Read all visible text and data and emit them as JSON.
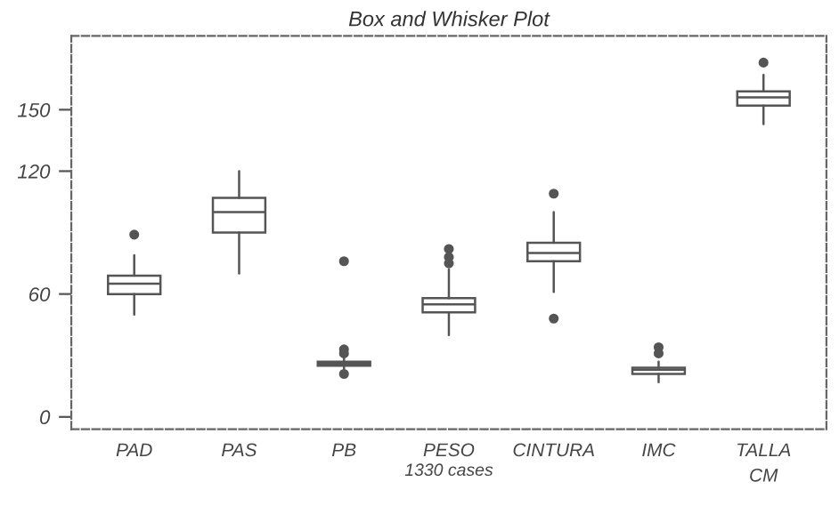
{
  "chart_data": {
    "type": "box",
    "title": "Box and Whisker Plot",
    "xlabel": "1330 cases",
    "categories": [
      "PAD",
      "PAS",
      "PB",
      "PESO",
      "CINTURA",
      "IMC",
      "TALLA\nCM"
    ],
    "boxes": [
      {
        "low": 50,
        "q1": 60,
        "median": 65,
        "q3": 69,
        "high": 79,
        "outliers": [
          89
        ]
      },
      {
        "low": 70,
        "q1": 90,
        "median": 100,
        "q3": 107,
        "high": 120
      },
      {
        "low": 22,
        "q1": 25,
        "median": 26,
        "q3": 27,
        "high": 29,
        "outliers": [
          76,
          33,
          31,
          21
        ]
      },
      {
        "low": 40,
        "q1": 51,
        "median": 55,
        "q3": 58,
        "high": 72,
        "outliers": [
          82,
          78,
          75
        ]
      },
      {
        "low": 61,
        "q1": 76,
        "median": 80,
        "q3": 85,
        "high": 100,
        "outliers": [
          109,
          48
        ]
      },
      {
        "low": 17,
        "q1": 21,
        "median": 23,
        "q3": 24,
        "high": 27,
        "outliers": [
          34,
          31
        ]
      },
      {
        "low": 143,
        "q1": 152,
        "median": 156,
        "q3": 159,
        "high": 167,
        "outliers": [
          173
        ]
      }
    ],
    "ylim": [
      -6,
      186
    ],
    "yticks": [
      0,
      60,
      120,
      150
    ],
    "grid": false
  }
}
